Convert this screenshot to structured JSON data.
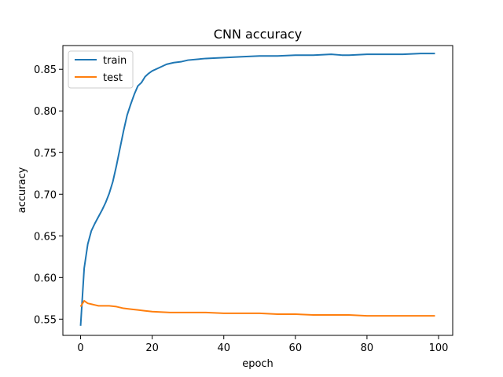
{
  "chart_data": {
    "type": "line",
    "title": "CNN accuracy",
    "xlabel": "epoch",
    "ylabel": "accuracy",
    "xlim": [
      -4.95,
      103.95
    ],
    "ylim": [
      0.5305,
      0.8785
    ],
    "xticks": [
      0,
      20,
      40,
      60,
      80,
      100
    ],
    "yticks": [
      0.55,
      0.6,
      0.65,
      0.7,
      0.75,
      0.8,
      0.85
    ],
    "ytick_labels": [
      "0.55",
      "0.60",
      "0.65",
      "0.70",
      "0.75",
      "0.80",
      "0.85"
    ],
    "xtick_labels": [
      "0",
      "20",
      "40",
      "60",
      "80",
      "100"
    ],
    "grid": false,
    "legend_position": "top-left",
    "series": [
      {
        "name": "train",
        "color": "#1f77b4",
        "x": [
          0,
          1,
          2,
          3,
          4,
          5,
          6,
          7,
          8,
          9,
          10,
          11,
          12,
          13,
          14,
          15,
          16,
          17,
          18,
          19,
          20,
          22,
          24,
          26,
          28,
          30,
          35,
          40,
          45,
          50,
          55,
          60,
          65,
          70,
          73,
          75,
          80,
          85,
          90,
          95,
          99
        ],
        "y": [
          0.542,
          0.611,
          0.64,
          0.656,
          0.665,
          0.673,
          0.681,
          0.69,
          0.701,
          0.715,
          0.734,
          0.755,
          0.776,
          0.795,
          0.808,
          0.82,
          0.83,
          0.834,
          0.841,
          0.845,
          0.848,
          0.852,
          0.856,
          0.858,
          0.859,
          0.861,
          0.863,
          0.864,
          0.865,
          0.866,
          0.866,
          0.867,
          0.867,
          0.868,
          0.867,
          0.867,
          0.868,
          0.868,
          0.868,
          0.869,
          0.869
        ]
      },
      {
        "name": "test",
        "color": "#ff7f0e",
        "x": [
          0,
          1,
          2,
          3,
          4,
          5,
          6,
          8,
          10,
          12,
          14,
          16,
          18,
          20,
          25,
          30,
          35,
          40,
          45,
          50,
          55,
          60,
          65,
          70,
          75,
          80,
          85,
          90,
          95,
          99
        ],
        "y": [
          0.565,
          0.572,
          0.569,
          0.568,
          0.567,
          0.566,
          0.566,
          0.566,
          0.565,
          0.563,
          0.562,
          0.561,
          0.56,
          0.559,
          0.558,
          0.558,
          0.558,
          0.557,
          0.557,
          0.557,
          0.556,
          0.556,
          0.555,
          0.555,
          0.555,
          0.554,
          0.554,
          0.554,
          0.554,
          0.554
        ]
      }
    ]
  }
}
